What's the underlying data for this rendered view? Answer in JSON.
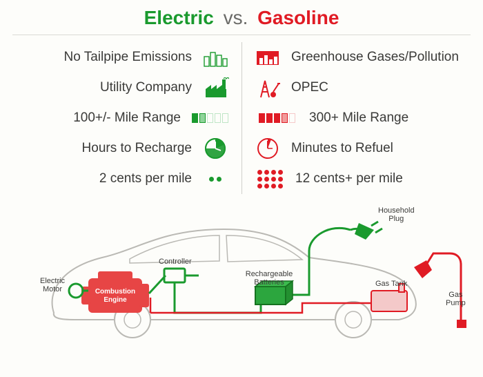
{
  "colors": {
    "electric": "#1a9a2e",
    "gasoline": "#e01b24",
    "vs": "#6b6b68",
    "text": "#3a3a38",
    "engine_fill": "#e74545",
    "engine_text": "#ffffff",
    "car_outline": "#bab9b4",
    "battery_fill": "#2ca63e",
    "gastank_fill": "#f4c9c9"
  },
  "title": {
    "left": "Electric",
    "vs": "vs.",
    "right": "Gasoline"
  },
  "rows": {
    "electric": [
      {
        "label": "No Tailpipe Emissions",
        "icon": "city"
      },
      {
        "label": "Utility Company",
        "icon": "factory"
      },
      {
        "label": "100+/- Mile Range",
        "icon": "range-short"
      },
      {
        "label": "Hours to Recharge",
        "icon": "clock-hours"
      },
      {
        "label": "2 cents per mile",
        "icon": "dots-2"
      }
    ],
    "gasoline": [
      {
        "label": "Greenhouse Gases/Pollution",
        "icon": "pollution"
      },
      {
        "label": "OPEC",
        "icon": "oil-rig"
      },
      {
        "label": "300+ Mile Range",
        "icon": "range-long"
      },
      {
        "label": "Minutes to Refuel",
        "icon": "clock-minutes"
      },
      {
        "label": "12 cents+ per mile",
        "icon": "dots-12"
      }
    ]
  },
  "car": {
    "labels": {
      "electric_motor": "Electric\nMotor",
      "combustion_engine": "Combustion\nEngine",
      "controller": "Controller",
      "batteries": "Rechargeable\nBatteries",
      "plug": "Household\nPlug",
      "gas_tank": "Gas Tank",
      "gas_pump": "Gas\nPump"
    }
  }
}
